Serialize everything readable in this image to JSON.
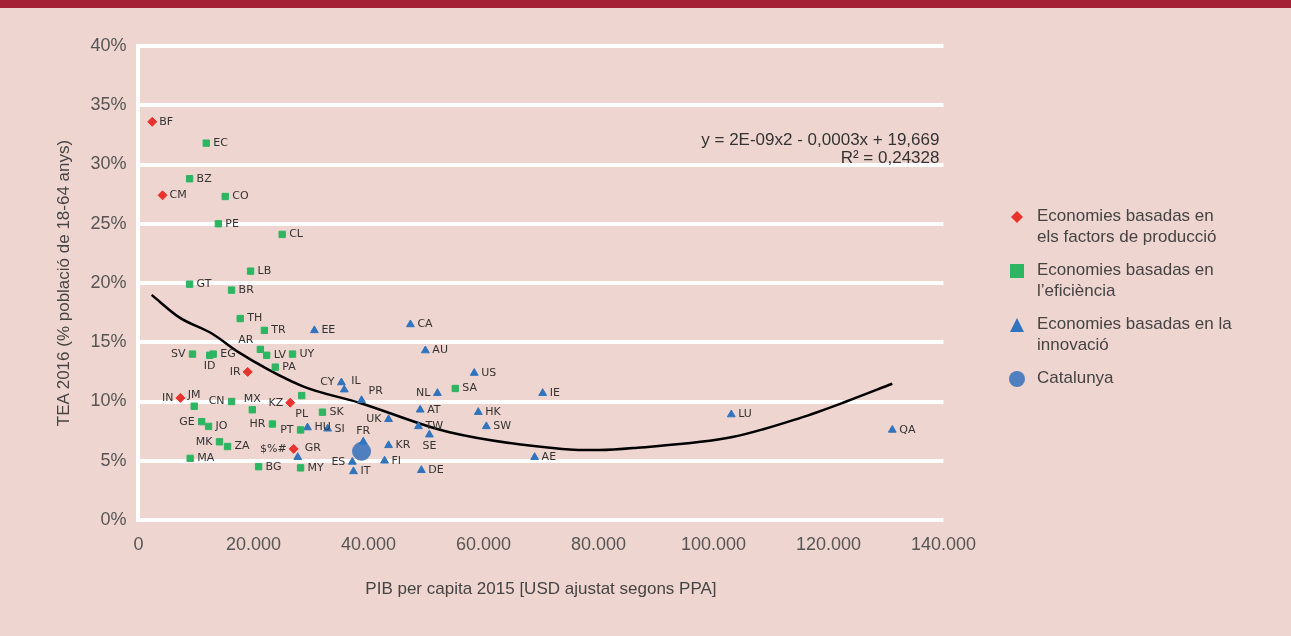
{
  "chart_data": {
    "type": "scatter",
    "xlabel": "PIB per capita 2015 [USD ajustat segons PPA]",
    "ylabel": "TEA 2016 (% població de 18-64 anys)",
    "xlim": [
      0,
      140000
    ],
    "xticks": [
      0,
      {
        "value": 20000,
        "label": "20.000"
      },
      {
        "value": 40000,
        "label": "40.000"
      },
      {
        "value": 60000,
        "label": "60.000"
      },
      {
        "value": 80000,
        "label": "80.000"
      },
      {
        "value": 100000,
        "label": "100.000"
      },
      {
        "value": 120000,
        "label": "120.000"
      },
      {
        "value": 140000,
        "label": "140.000"
      }
    ],
    "ylim": [
      0,
      40
    ],
    "yticks": [
      {
        "value": 0,
        "label": "0%"
      },
      {
        "value": 5,
        "label": "5%"
      },
      {
        "value": 10,
        "label": "10%"
      },
      {
        "value": 15,
        "label": "15%"
      },
      {
        "value": 20,
        "label": "20%"
      },
      {
        "value": 25,
        "label": "25%"
      },
      {
        "value": 30,
        "label": "30%"
      },
      {
        "value": 35,
        "label": "35%"
      },
      {
        "value": 40,
        "label": "40%"
      }
    ],
    "grid": "y",
    "legend": "right",
    "series": [
      {
        "name": "Economies basadas en els factors de producció",
        "color": "#e8322d",
        "marker": "diamond",
        "x": [
          2400,
          4200,
          19000,
          7300,
          26400,
          27000
        ],
        "values": [
          33.6,
          27.4,
          12.5,
          10.3,
          9.9,
          6.0
        ]
      },
      {
        "name": "Economies basadas en l’eficiència",
        "color": "#2db562",
        "marker": "square",
        "x": [
          11800,
          8900,
          15100,
          13900,
          25000,
          19500,
          8900,
          16200,
          17700,
          21900,
          9400,
          12400,
          13000,
          21200,
          22300,
          26800,
          23800,
          28400,
          16200,
          9700,
          19800,
          32000,
          11000,
          12200,
          23300,
          28200,
          14100,
          15500,
          9000,
          20900,
          28200,
          55100
        ],
        "values": [
          31.8,
          28.8,
          27.3,
          25.0,
          24.1,
          21.0,
          19.9,
          19.4,
          17.0,
          16.0,
          14.0,
          13.9,
          14.0,
          14.4,
          13.9,
          14.0,
          12.9,
          10.5,
          10.0,
          9.6,
          9.3,
          9.1,
          8.3,
          7.9,
          8.1,
          7.6,
          6.6,
          6.2,
          5.2,
          4.5,
          4.4,
          11.1
        ]
      },
      {
        "name": "Economies basadas en la innovació",
        "color": "#2f74bd",
        "marker": "triangle",
        "x": [
          30600,
          47300,
          49900,
          58400,
          52000,
          70300,
          49000,
          59100,
          43500,
          48700,
          50600,
          60500,
          68900,
          49200,
          43500,
          42800,
          39100,
          27700,
          37200,
          37400,
          35300,
          35800,
          38800,
          29400,
          32900,
          103100,
          131100
        ],
        "values": [
          16.0,
          16.5,
          14.3,
          12.4,
          10.7,
          10.7,
          9.3,
          9.1,
          8.5,
          7.9,
          7.2,
          7.9,
          5.3,
          4.2,
          6.3,
          5.0,
          6.6,
          5.3,
          4.9,
          4.1,
          11.6,
          11.0,
          10.1,
          7.8,
          7.7,
          8.9,
          7.6
        ]
      },
      {
        "name": "Catalunya",
        "color": "#4f7fbf",
        "marker": "circle",
        "x": [
          38800
        ],
        "values": [
          5.8
        ]
      },
      {
        "type": "line",
        "color": "#000000",
        "marker": "none",
        "x": [
          2300,
          7100,
          12900,
          17600,
          28500,
          38400,
          54100,
          73700,
          80200,
          86800,
          103300,
          115000,
          123100,
          131100
        ],
        "values": [
          19.0,
          17.1,
          15.7,
          14.1,
          11.3,
          9.9,
          7.4,
          6.0,
          5.9,
          6.1,
          7.0,
          8.6,
          10.0,
          11.5
        ]
      }
    ],
    "annotations": [
      "y = 2E-09x2 - 0,0003x + 19,669",
      "R² = 0,24328",
      {
        "text": "BF",
        "x": 2400,
        "y": 33.6
      },
      {
        "text": "CM",
        "x": 4200,
        "y": 27.4
      },
      {
        "text": "IR",
        "x": 19000,
        "y": 12.5
      },
      {
        "text": "IN",
        "x": 7300,
        "y": 10.3
      },
      {
        "text": "KZ",
        "x": 26400,
        "y": 9.9
      },
      {
        "text": "$%#",
        "x": 27000,
        "y": 6.0
      },
      {
        "text": "EC",
        "x": 11800,
        "y": 31.8
      },
      {
        "text": "BZ",
        "x": 8900,
        "y": 28.8
      },
      {
        "text": "CO",
        "x": 15100,
        "y": 27.3
      },
      {
        "text": "PE",
        "x": 13900,
        "y": 25.0
      },
      {
        "text": "CL",
        "x": 25000,
        "y": 24.1
      },
      {
        "text": "LB",
        "x": 19500,
        "y": 21.0
      },
      {
        "text": "GT",
        "x": 8900,
        "y": 19.9
      },
      {
        "text": "BR",
        "x": 16200,
        "y": 19.4
      },
      {
        "text": "TH",
        "x": 17700,
        "y": 17.0
      },
      {
        "text": "TR",
        "x": 21900,
        "y": 16.0
      },
      {
        "text": "SV",
        "x": 9400,
        "y": 14.0
      },
      {
        "text": "ID",
        "x": 12400,
        "y": 13.9
      },
      {
        "text": "EG",
        "x": 13000,
        "y": 14.0
      },
      {
        "text": "AR",
        "x": 21200,
        "y": 14.4
      },
      {
        "text": "LV",
        "x": 22300,
        "y": 13.9
      },
      {
        "text": "UY",
        "x": 26800,
        "y": 14.0
      },
      {
        "text": "PA",
        "x": 23800,
        "y": 12.9
      },
      {
        "text": "PL",
        "x": 28400,
        "y": 10.5
      },
      {
        "text": "CN",
        "x": 16200,
        "y": 10.0
      },
      {
        "text": "JM",
        "x": 9700,
        "y": 9.6
      },
      {
        "text": "MX",
        "x": 19800,
        "y": 9.3
      },
      {
        "text": "SK",
        "x": 32000,
        "y": 9.1
      },
      {
        "text": "GE",
        "x": 11000,
        "y": 8.3
      },
      {
        "text": "JO",
        "x": 12200,
        "y": 7.9
      },
      {
        "text": "HR",
        "x": 23300,
        "y": 8.1
      },
      {
        "text": "PT",
        "x": 28200,
        "y": 7.6
      },
      {
        "text": "MK",
        "x": 14100,
        "y": 6.6
      },
      {
        "text": "ZA",
        "x": 15500,
        "y": 6.2
      },
      {
        "text": "MA",
        "x": 9000,
        "y": 5.2
      },
      {
        "text": "BG",
        "x": 20900,
        "y": 4.5
      },
      {
        "text": "MY",
        "x": 28200,
        "y": 4.4
      },
      {
        "text": "SA",
        "x": 55100,
        "y": 11.1
      },
      {
        "text": "EE",
        "x": 30600,
        "y": 16.0
      },
      {
        "text": "CA",
        "x": 47300,
        "y": 16.5
      },
      {
        "text": "AU",
        "x": 49900,
        "y": 14.3
      },
      {
        "text": "US",
        "x": 58400,
        "y": 12.4
      },
      {
        "text": "NL",
        "x": 52000,
        "y": 10.7
      },
      {
        "text": "IE",
        "x": 70300,
        "y": 10.7
      },
      {
        "text": "AT",
        "x": 49000,
        "y": 9.3
      },
      {
        "text": "HK",
        "x": 59100,
        "y": 9.1
      },
      {
        "text": "UK",
        "x": 43500,
        "y": 8.5
      },
      {
        "text": "TW",
        "x": 48700,
        "y": 7.9
      },
      {
        "text": "SE",
        "x": 50600,
        "y": 7.2
      },
      {
        "text": "SW",
        "x": 60500,
        "y": 7.9
      },
      {
        "text": "AE",
        "x": 68900,
        "y": 5.3
      },
      {
        "text": "DE",
        "x": 49200,
        "y": 4.2
      },
      {
        "text": "KR",
        "x": 43500,
        "y": 6.3
      },
      {
        "text": "FI",
        "x": 42800,
        "y": 5.0
      },
      {
        "text": "FR",
        "x": 39100,
        "y": 6.6
      },
      {
        "text": "GR",
        "x": 27700,
        "y": 5.3
      },
      {
        "text": "ES",
        "x": 37200,
        "y": 4.9
      },
      {
        "text": "IT",
        "x": 37400,
        "y": 4.1
      },
      {
        "text": "CY",
        "x": 35300,
        "y": 11.6
      },
      {
        "text": "IL",
        "x": 35800,
        "y": 11.0
      },
      {
        "text": "PR",
        "x": 38800,
        "y": 10.1
      },
      {
        "text": "HU",
        "x": 29400,
        "y": 7.8
      },
      {
        "text": "SI",
        "x": 32900,
        "y": 7.7
      },
      {
        "text": "LU",
        "x": 103100,
        "y": 8.9
      },
      {
        "text": "QA",
        "x": 131100,
        "y": 7.6
      }
    ]
  }
}
